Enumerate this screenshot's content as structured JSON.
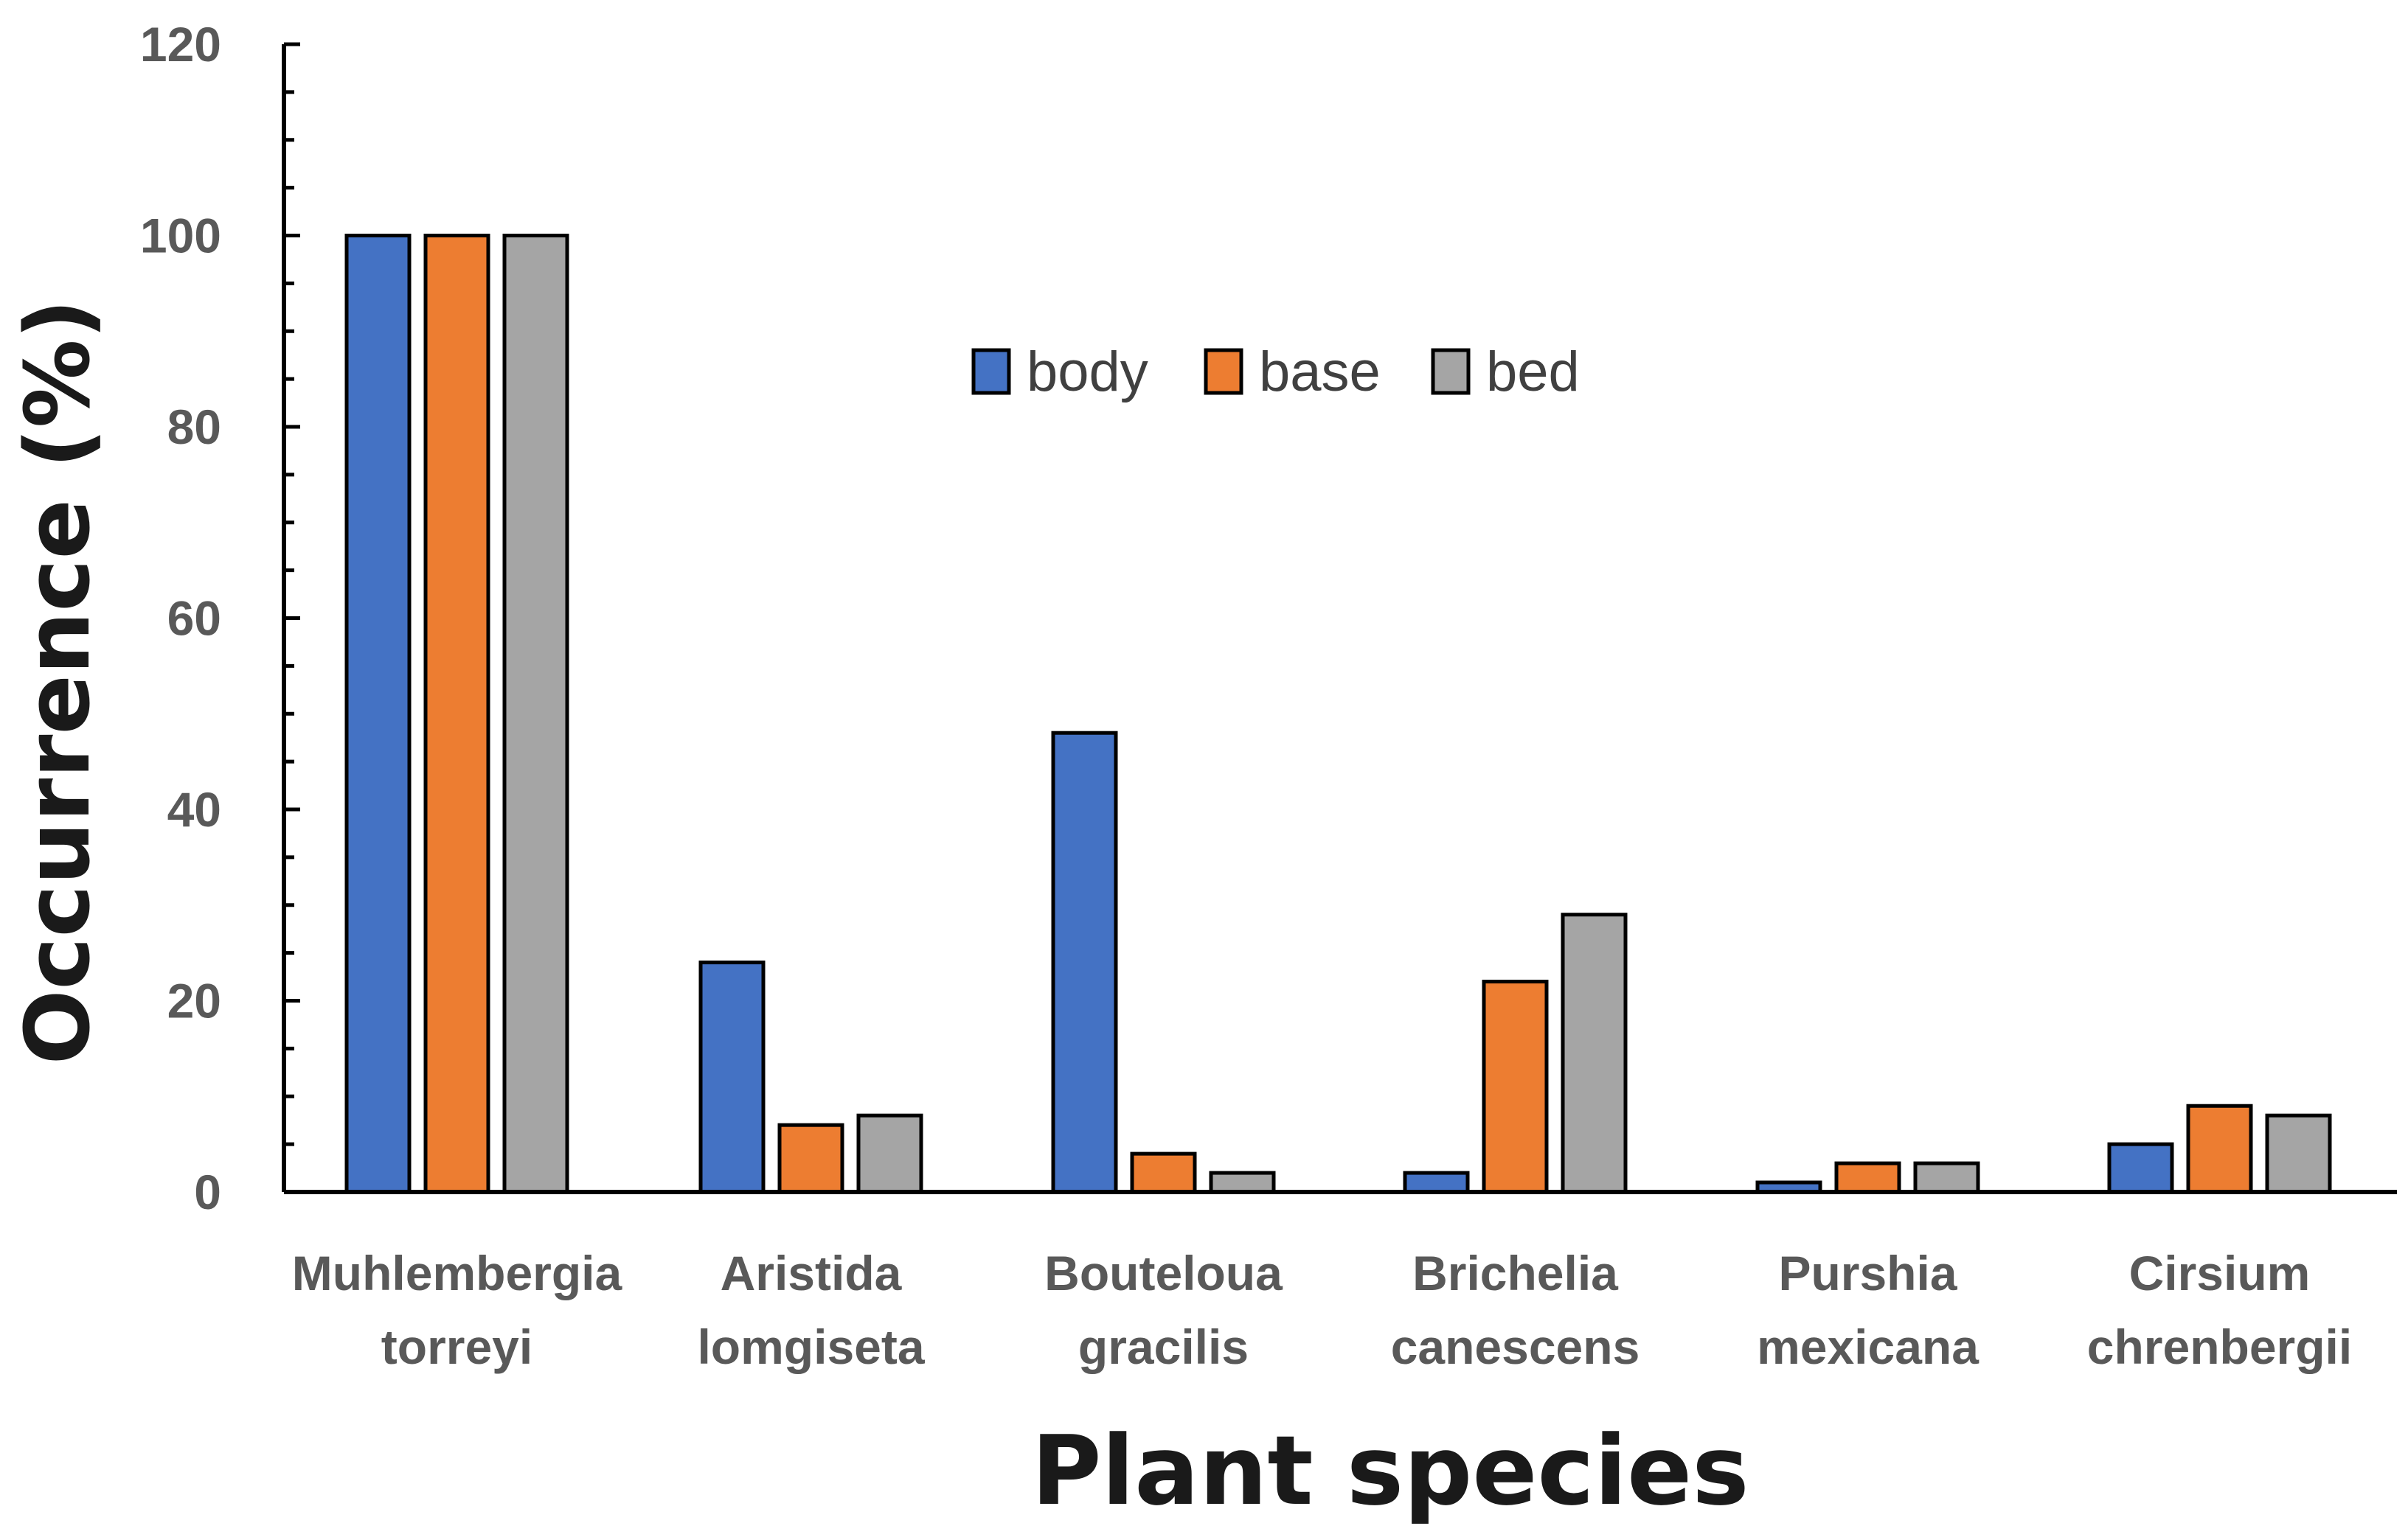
{
  "chart_data": {
    "type": "bar",
    "title": "",
    "xlabel": "Plant species",
    "ylabel": "Occurrence (%)",
    "ylim": [
      0,
      120
    ],
    "yticks": [
      "0",
      "20",
      "40",
      "60",
      "80",
      "100",
      "120"
    ],
    "grid": false,
    "legend_position": "top-center",
    "categories": [
      [
        "Muhlembergia",
        "torreyi"
      ],
      [
        "Aristida",
        "lomgiseta"
      ],
      [
        "Bouteloua",
        "gracilis"
      ],
      [
        "Brichelia",
        "canescens"
      ],
      [
        "Purshia",
        "mexicana"
      ],
      [
        "Cirsium",
        "chrenbergii"
      ]
    ],
    "series": [
      {
        "name": "body",
        "color": "#4472C4",
        "values": [
          100,
          24,
          48,
          2,
          1,
          5
        ]
      },
      {
        "name": "base",
        "color": "#ED7D31",
        "values": [
          100,
          7,
          4,
          22,
          3,
          9
        ]
      },
      {
        "name": "bed",
        "color": "#A5A5A5",
        "values": [
          100,
          8,
          2,
          29,
          3,
          8
        ]
      }
    ]
  }
}
